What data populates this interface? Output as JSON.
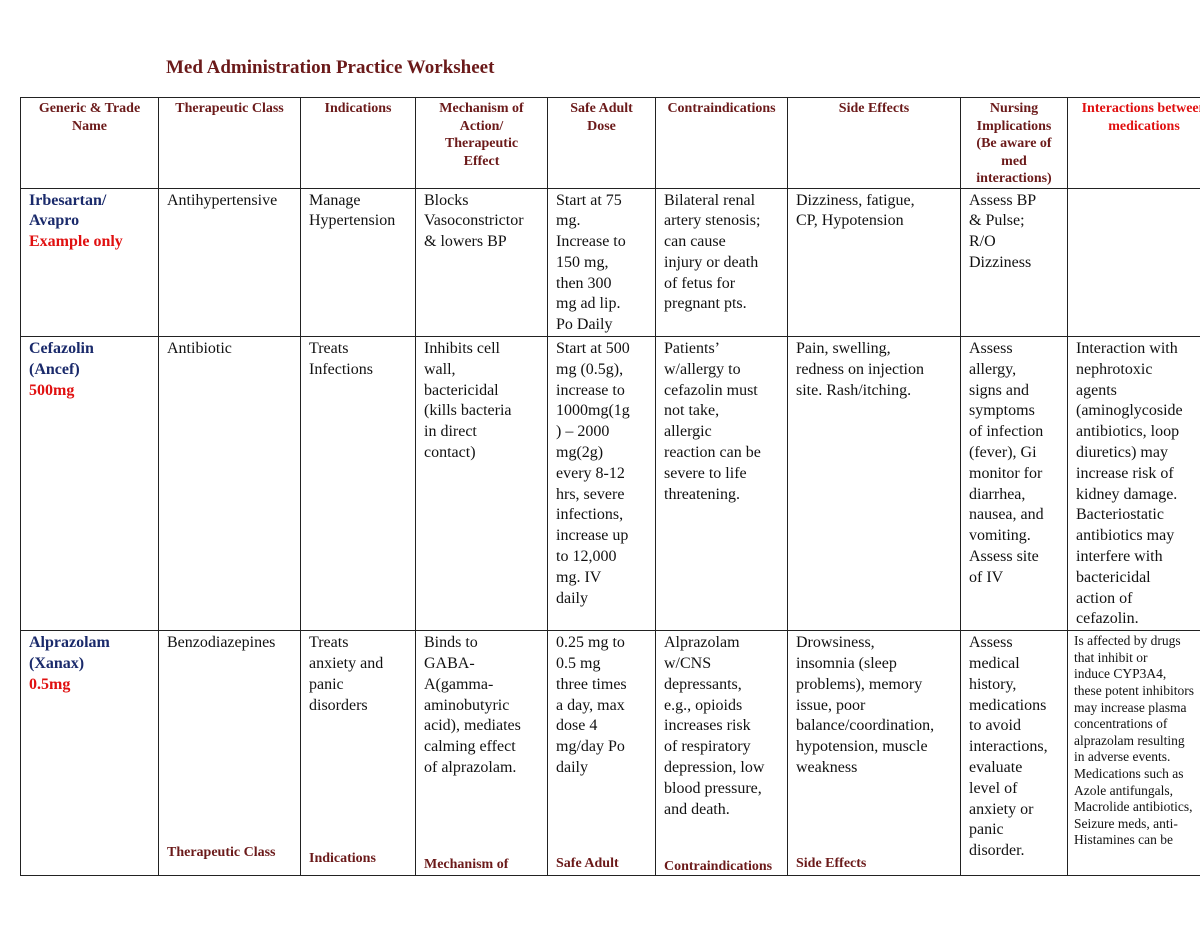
{
  "title": "Med Administration Practice Worksheet",
  "headers": [
    "Generic & Trade\nName",
    "Therapeutic Class",
    "Indications",
    "Mechanism of\nAction/\nTherapeutic\nEffect",
    "Safe Adult\nDose",
    "Contraindications",
    "Side Effects",
    "Nursing\nImplications\n(Be aware of\nmed\ninteractions)",
    "Interactions between\nmedications"
  ],
  "rows": [
    {
      "name": "Irbesartan/\nAvapro",
      "note": "Example only",
      "class": "Antihypertensive",
      "indications": "Manage\nHypertension",
      "mechanism": "Blocks\nVasoconstrictor\n& lowers BP",
      "dose": "Start at 75\nmg.\nIncrease to\n150 mg,\nthen 300\nmg ad lip.\nPo Daily",
      "contra": "Bilateral renal\nartery stenosis;\ncan cause\ninjury or death\nof fetus for\npregnant pts.",
      "side": "Dizziness, fatigue,\nCP, Hypotension",
      "nursing": "Assess BP\n& Pulse;\nR/O\nDizziness",
      "interactions": ""
    },
    {
      "name": "Cefazolin\n(Ancef)",
      "note": " 500mg",
      "class": "Antibiotic",
      "indications": "Treats\nInfections",
      "mechanism": "Inhibits cell\nwall,\nbactericidal\n(kills bacteria\nin direct\ncontact)",
      "dose": "Start at 500\nmg (0.5g),\nincrease to\n1000mg(1g\n) – 2000\nmg(2g)\nevery 8-12\nhrs, severe\ninfections,\nincrease up\nto 12,000\nmg. IV\ndaily",
      "contra": "Patients’\nw/allergy to\ncefazolin must\nnot take,\nallergic\nreaction can be\nsevere to life\nthreatening.",
      "side": "Pain, swelling,\nredness on injection\nsite. Rash/itching.",
      "nursing": "Assess\nallergy,\nsigns and\nsymptoms\nof infection\n(fever), Gi\nmonitor for\ndiarrhea,\nnausea, and\nvomiting.\nAssess site\nof IV",
      "interactions": "Interaction with\nnephrotoxic\nagents\n(aminoglycoside\nantibiotics, loop\ndiuretics) may\nincrease risk of\nkidney damage.\nBacteriostatic\nantibiotics may\ninterfere with\nbactericidal\naction of\ncefazolin."
    },
    {
      "name": "Alprazolam\n(Xanax)",
      "note": "0.5mg",
      "class": "Benzodiazepines",
      "indications": "Treats\nanxiety and\npanic\ndisorders",
      "mechanism": "Binds to\nGABA-\nA(gamma-\naminobutyric\nacid), mediates\ncalming effect\nof alprazolam.",
      "dose": "0.25 mg to\n0.5 mg\nthree times\na day, max\ndose 4\nmg/day Po\ndaily",
      "contra": "Alprazolam\nw/CNS\ndepressants,\ne.g., opioids\nincreases risk\nof respiratory\ndepression, low\nblood pressure,\nand death.",
      "side": "Drowsiness,\ninsomnia (sleep\nproblems), memory\nissue, poor\nbalance/coordination,\nhypotension, muscle\nweakness",
      "nursing": "Assess\nmedical\nhistory,\nmedications\nto avoid\ninteractions,\nevaluate\nlevel of\nanxiety or\npanic\ndisorder.",
      "interactions": "Is affected by drugs\n that inhibit or\n induce CYP3A4,\nthese potent inhibitors\nmay increase plasma\nconcentrations of\nalprazolam resulting\nin adverse events.\nMedications such as\nAzole antifungals,\nMacrolide antibiotics,\nSeizure meds, anti-\nHistamines can be"
    }
  ],
  "ghost_labels": {
    "class": "Therapeutic Class",
    "indications": "Indications",
    "mechanism": "Mechanism of",
    "dose": "Safe Adult",
    "contra": "Contraindications",
    "side": "Side Effects"
  }
}
